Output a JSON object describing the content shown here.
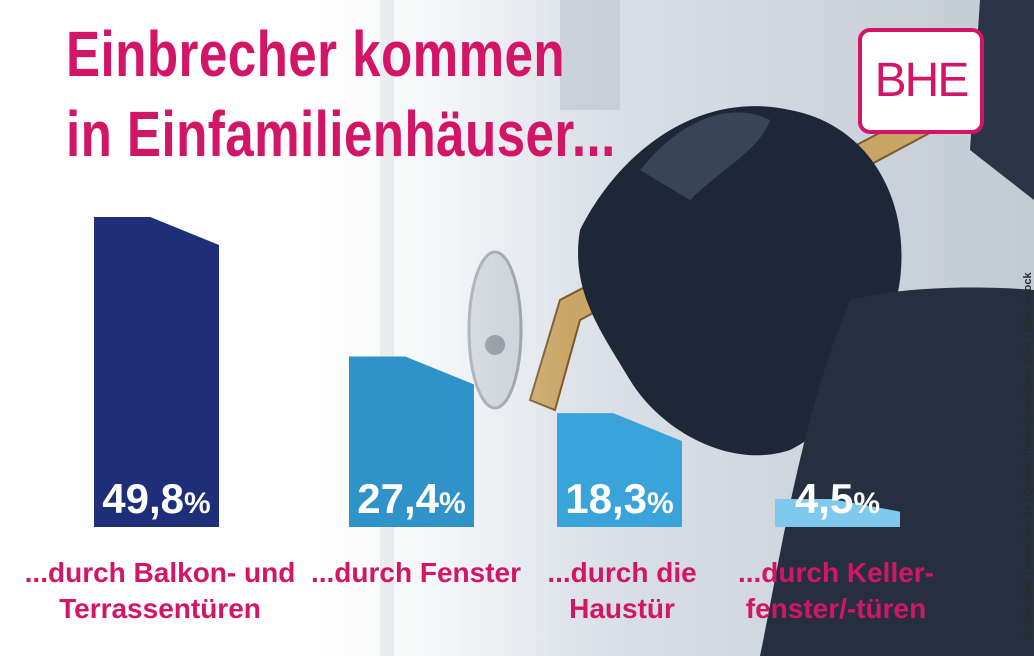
{
  "title": {
    "line1": "Einbrecher kommen",
    "line2": "in Einfamilienhäuser..."
  },
  "logo": {
    "text": "BHE"
  },
  "credit": "Grafik: BHE | www.bhe.de | Quelle: Polizeipräsidium Köln | Bild: istock",
  "colors": {
    "title": "#d31567",
    "bar_1": "#1f2e78",
    "bar_2": "#2f92c8",
    "bar_3": "#3aa3d9",
    "bar_4": "#7fc8ee"
  },
  "chart_data": {
    "type": "bar",
    "title": "Einbrecher kommen in Einfamilienhäuser...",
    "categories": [
      [
        "...durch Balkon- und",
        "Terrassentüren"
      ],
      [
        "...durch Fenster"
      ],
      [
        "...durch die",
        "Haustür"
      ],
      [
        "...durch Keller-",
        "fenster/-türen"
      ]
    ],
    "values": [
      49.8,
      27.4,
      18.3,
      4.5
    ],
    "value_labels": [
      "49,8",
      "27,4",
      "18,3",
      "4,5"
    ],
    "unit": "%",
    "ylim": [
      0,
      49.8
    ],
    "grid": false,
    "legend": false
  }
}
